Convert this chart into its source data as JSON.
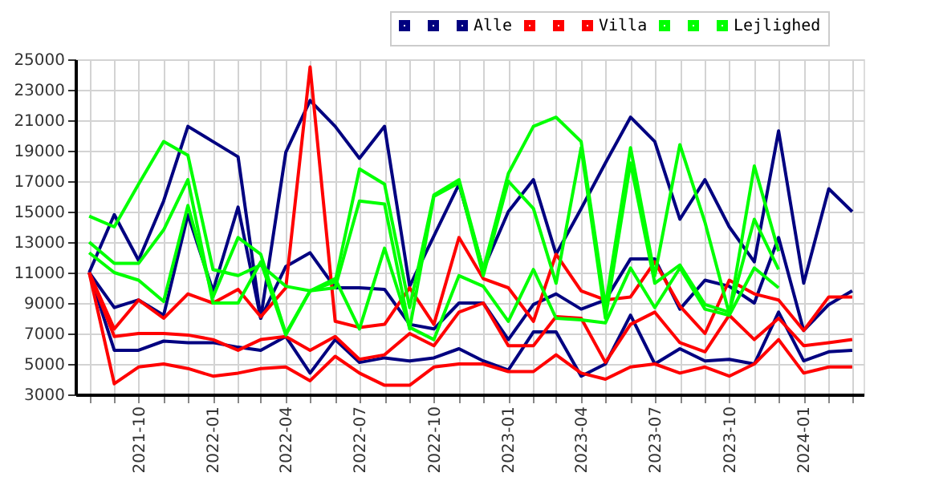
{
  "chart_data": {
    "type": "line",
    "x": [
      "2021-08",
      "2021-09",
      "2021-10",
      "2021-11",
      "2021-12",
      "2022-01",
      "2022-02",
      "2022-03",
      "2022-04",
      "2022-05",
      "2022-06",
      "2022-07",
      "2022-08",
      "2022-09",
      "2022-10",
      "2022-11",
      "2022-12",
      "2023-01",
      "2023-02",
      "2023-03",
      "2023-04",
      "2023-05",
      "2023-06",
      "2023-07",
      "2023-08",
      "2023-09",
      "2023-10",
      "2023-11",
      "2023-12",
      "2024-01",
      "2024-02",
      "2024-03"
    ],
    "xlim": [
      "2021-07-15",
      "2024-03-15"
    ],
    "xticks": [
      {
        "value": "2021-08",
        "label": null
      },
      {
        "value": "2021-09",
        "label": null
      },
      {
        "value": "2021-10",
        "label": "2021-10"
      },
      {
        "value": "2021-11",
        "label": null
      },
      {
        "value": "2021-12",
        "label": null
      },
      {
        "value": "2022-01",
        "label": "2022-01"
      },
      {
        "value": "2022-02",
        "label": null
      },
      {
        "value": "2022-03",
        "label": null
      },
      {
        "value": "2022-04",
        "label": "2022-04"
      },
      {
        "value": "2022-05",
        "label": null
      },
      {
        "value": "2022-06",
        "label": null
      },
      {
        "value": "2022-07",
        "label": "2022-07"
      },
      {
        "value": "2022-08",
        "label": null
      },
      {
        "value": "2022-09",
        "label": null
      },
      {
        "value": "2022-10",
        "label": "2022-10"
      },
      {
        "value": "2022-11",
        "label": null
      },
      {
        "value": "2022-12",
        "label": null
      },
      {
        "value": "2023-01",
        "label": "2023-01"
      },
      {
        "value": "2023-02",
        "label": null
      },
      {
        "value": "2023-03",
        "label": null
      },
      {
        "value": "2023-04",
        "label": "2023-04"
      },
      {
        "value": "2023-05",
        "label": null
      },
      {
        "value": "2023-06",
        "label": null
      },
      {
        "value": "2023-07",
        "label": "2023-07"
      },
      {
        "value": "2023-08",
        "label": null
      },
      {
        "value": "2023-09",
        "label": null
      },
      {
        "value": "2023-10",
        "label": "2023-10"
      },
      {
        "value": "2023-11",
        "label": null
      },
      {
        "value": "2023-12",
        "label": null
      },
      {
        "value": "2024-01",
        "label": "2024-01"
      },
      {
        "value": "2024-02",
        "label": null
      },
      {
        "value": "2024-03",
        "label": null
      }
    ],
    "ylim": [
      3000,
      25000
    ],
    "yticks": [
      3000,
      5000,
      7000,
      9000,
      11000,
      13000,
      15000,
      17000,
      19000,
      21000,
      23000,
      25000
    ],
    "grid": true,
    "legend": "top right",
    "marker": "none",
    "line_style": "solid",
    "series": [
      {
        "color": "#000080",
        "values": [
          11000,
          14800,
          11800,
          15700,
          20600,
          19600,
          18600,
          8000,
          18900,
          22300,
          20600,
          18500,
          20600,
          10100,
          13400,
          16800,
          11200,
          15000,
          17100,
          12200,
          15200,
          18200,
          21200,
          19600,
          14500,
          17100,
          14000,
          11700,
          20300,
          10300,
          16500,
          15000
        ]
      },
      {
        "color": "#000080",
        "values": [
          11000,
          8700,
          9200,
          8200,
          14800,
          9800,
          15300,
          8000,
          11400,
          12300,
          10000,
          10000,
          9900,
          7600,
          7300,
          9000,
          9000,
          6600,
          8900,
          9600,
          8600,
          9200,
          11900,
          11900,
          8600,
          10500,
          10100,
          9000,
          13300,
          7200,
          8900,
          9800
        ]
      },
      {
        "name": "Alle",
        "color": "#000080",
        "values": [
          11000,
          5900,
          5900,
          6500,
          6400,
          6400,
          6100,
          5900,
          6800,
          4400,
          6600,
          5100,
          5400,
          5200,
          5400,
          6000,
          5200,
          4600,
          7100,
          7100,
          4200,
          5000,
          8200,
          5000,
          6000,
          5200,
          5300,
          5000,
          8400,
          5200,
          5800,
          5900
        ]
      },
      {
        "color": "#ff0000",
        "values": [
          11000,
          7300,
          9200,
          8000,
          9600,
          9000,
          9900,
          8100,
          10000,
          24500,
          7800,
          7400,
          7600,
          10000,
          7600,
          13300,
          10600,
          10000,
          7800,
          12200,
          9800,
          9200,
          9400,
          11700,
          8800,
          7000,
          10500,
          9600,
          9200,
          7200,
          9400,
          9400
        ]
      },
      {
        "color": "#ff0000",
        "values": [
          11000,
          6800,
          7000,
          7000,
          6900,
          6600,
          5900,
          6600,
          6800,
          5900,
          6800,
          5300,
          5600,
          7000,
          6200,
          8400,
          9000,
          6200,
          6200,
          8100,
          8000,
          5100,
          7600,
          8400,
          6400,
          5800,
          8200,
          6600,
          8000,
          6200,
          6400,
          6600
        ]
      },
      {
        "name": "Villa",
        "color": "#ff0000",
        "values": [
          11000,
          3700,
          4800,
          5000,
          4700,
          4200,
          4400,
          4700,
          4800,
          3900,
          5500,
          4400,
          3600,
          3600,
          4800,
          5000,
          5000,
          4500,
          4500,
          5600,
          4400,
          4000,
          4800,
          5000,
          4400,
          4800,
          4200,
          5000,
          6600,
          4400,
          4800,
          4800
        ]
      },
      {
        "color": "#00ff00",
        "values": [
          14700,
          14000,
          16800,
          19600,
          18700,
          11200,
          10800,
          11500,
          10100,
          9800,
          10400,
          17800,
          16800,
          8700,
          16100,
          17100,
          11200,
          17500,
          20600,
          21200,
          19600,
          8800,
          19200,
          10800,
          19400,
          14300,
          8300,
          18000,
          12400,
          null,
          null,
          null
        ]
      },
      {
        "color": "#00ff00",
        "values": [
          13000,
          11600,
          11600,
          13800,
          17100,
          9000,
          9000,
          11700,
          6900,
          9800,
          10000,
          15700,
          15500,
          7300,
          16000,
          16900,
          10800,
          17000,
          15200,
          10300,
          19200,
          8000,
          18200,
          10300,
          11500,
          8900,
          8400,
          14500,
          11200,
          null,
          null,
          null
        ]
      },
      {
        "name": "Lejlighed",
        "color": "#00ff00",
        "values": [
          12300,
          11000,
          10500,
          9100,
          15400,
          9400,
          13300,
          12200,
          7000,
          9800,
          10600,
          7300,
          12600,
          7400,
          6600,
          10800,
          10100,
          7800,
          11200,
          8000,
          7900,
          7700,
          11300,
          8700,
          11300,
          8600,
          8200,
          11300,
          10000,
          null,
          null,
          null
        ]
      }
    ]
  }
}
